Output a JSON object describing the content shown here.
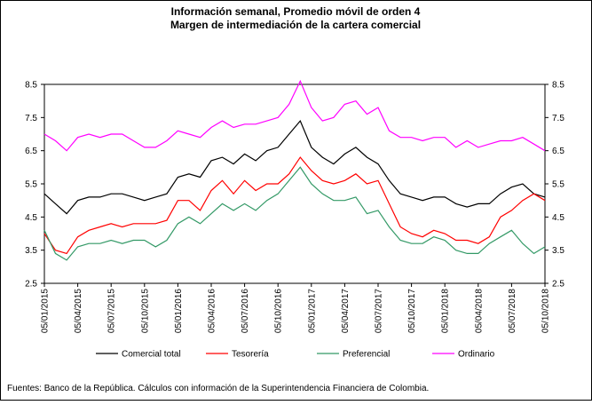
{
  "chart_data": {
    "type": "line",
    "title": [
      "Información semanal, Promedio móvil de orden 4",
      "Margen de intermediación de la cartera comercial"
    ],
    "x": [
      "05/01/2015",
      "05/02/2015",
      "05/03/2015",
      "05/04/2015",
      "05/05/2015",
      "05/06/2015",
      "05/07/2015",
      "05/08/2015",
      "05/09/2015",
      "05/10/2015",
      "05/11/2015",
      "05/12/2015",
      "05/01/2016",
      "05/02/2016",
      "05/03/2016",
      "05/04/2016",
      "05/05/2016",
      "05/06/2016",
      "05/07/2016",
      "05/08/2016",
      "05/09/2016",
      "05/10/2016",
      "05/11/2016",
      "05/12/2016",
      "05/01/2017",
      "05/02/2017",
      "05/03/2017",
      "05/04/2017",
      "05/05/2017",
      "05/06/2017",
      "05/07/2017",
      "05/08/2017",
      "05/09/2017",
      "05/10/2017",
      "05/11/2017",
      "05/12/2017",
      "05/01/2018",
      "05/02/2018",
      "05/03/2018",
      "05/04/2018",
      "05/05/2018",
      "05/06/2018",
      "05/07/2018",
      "05/08/2018",
      "05/09/2018",
      "05/10/2018"
    ],
    "xticks": [
      "05/01/2015",
      "05/04/2015",
      "05/07/2015",
      "05/10/2015",
      "05/01/2016",
      "05/04/2016",
      "05/07/2016",
      "05/10/2016",
      "05/01/2017",
      "05/04/2017",
      "05/07/2017",
      "05/10/2017",
      "05/01/2018",
      "05/04/2018",
      "05/07/2018",
      "05/10/2018"
    ],
    "series": [
      {
        "name": "Comercial total",
        "color": "#000000",
        "values": [
          5.2,
          4.9,
          4.6,
          5.0,
          5.1,
          5.1,
          5.2,
          5.2,
          5.1,
          5.0,
          5.1,
          5.2,
          5.7,
          5.8,
          5.7,
          6.2,
          6.3,
          6.1,
          6.4,
          6.2,
          6.5,
          6.6,
          7.0,
          7.4,
          6.6,
          6.3,
          6.1,
          6.4,
          6.6,
          6.3,
          6.1,
          5.6,
          5.2,
          5.1,
          5.0,
          5.1,
          5.1,
          4.9,
          4.8,
          4.9,
          4.9,
          5.2,
          5.4,
          5.5,
          5.2,
          5.1
        ]
      },
      {
        "name": "Tesorería",
        "color": "#ff0000",
        "values": [
          4.0,
          3.5,
          3.4,
          3.9,
          4.1,
          4.2,
          4.3,
          4.2,
          4.3,
          4.3,
          4.3,
          4.4,
          5.0,
          5.0,
          4.7,
          5.3,
          5.6,
          5.2,
          5.6,
          5.3,
          5.5,
          5.5,
          5.8,
          6.3,
          5.9,
          5.6,
          5.5,
          5.6,
          5.8,
          5.5,
          5.6,
          4.9,
          4.2,
          4.0,
          3.9,
          4.1,
          4.0,
          3.8,
          3.8,
          3.7,
          3.9,
          4.5,
          4.7,
          5.0,
          5.2,
          5.0
        ]
      },
      {
        "name": "Preferencial",
        "color": "#339966",
        "values": [
          4.1,
          3.4,
          3.2,
          3.6,
          3.7,
          3.7,
          3.8,
          3.7,
          3.8,
          3.8,
          3.6,
          3.8,
          4.3,
          4.5,
          4.3,
          4.6,
          4.9,
          4.7,
          4.9,
          4.7,
          5.0,
          5.2,
          5.6,
          6.0,
          5.5,
          5.2,
          5.0,
          5.0,
          5.1,
          4.6,
          4.7,
          4.2,
          3.8,
          3.7,
          3.7,
          3.9,
          3.8,
          3.5,
          3.4,
          3.4,
          3.7,
          3.9,
          4.1,
          3.7,
          3.4,
          3.6
        ]
      },
      {
        "name": "Ordinario",
        "color": "#ff00ff",
        "values": [
          7.0,
          6.8,
          6.5,
          6.9,
          7.0,
          6.9,
          7.0,
          7.0,
          6.8,
          6.6,
          6.6,
          6.8,
          7.1,
          7.0,
          6.9,
          7.2,
          7.4,
          7.2,
          7.3,
          7.3,
          7.4,
          7.5,
          7.9,
          8.6,
          7.8,
          7.4,
          7.5,
          7.9,
          8.0,
          7.6,
          7.8,
          7.1,
          6.9,
          6.9,
          6.8,
          6.9,
          6.9,
          6.6,
          6.8,
          6.6,
          6.7,
          6.8,
          6.8,
          6.9,
          6.7,
          6.5
        ]
      }
    ],
    "ylim": [
      2.5,
      8.5
    ],
    "yticks": [
      2.5,
      3.5,
      4.5,
      5.5,
      6.5,
      7.5,
      8.5
    ],
    "y2lim": [
      2.5,
      8.5
    ],
    "y2ticks": [
      2.5,
      3.5,
      4.5,
      5.5,
      6.5,
      7.5,
      8.5
    ],
    "source": "Fuentes: Banco de la República. Cálculos con información de la Superintendencia Financiera de Colombia."
  }
}
